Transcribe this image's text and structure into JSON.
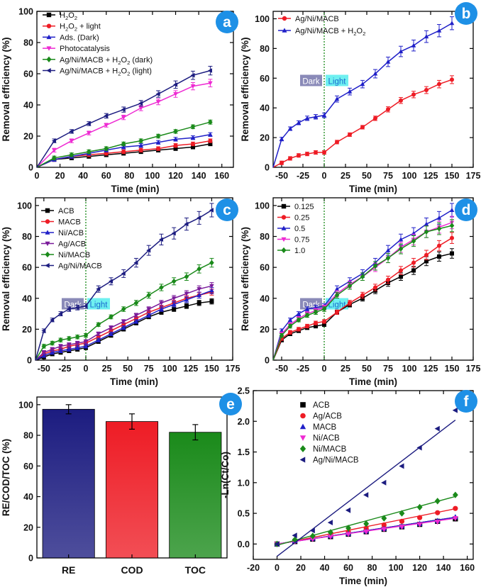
{
  "chart_data": [
    {
      "panel": "a",
      "type": "line",
      "xlabel": "Time (min)",
      "ylabel": "Removal efficiency (%)",
      "xlim": [
        0,
        170
      ],
      "ylim": [
        0,
        100
      ],
      "xticks": [
        0,
        20,
        40,
        60,
        80,
        100,
        120,
        140,
        160
      ],
      "yticks": [
        0,
        20,
        40,
        60,
        80,
        100
      ],
      "x": [
        0,
        15,
        30,
        45,
        60,
        75,
        90,
        105,
        120,
        135,
        150
      ],
      "series": [
        {
          "name": "H2O2",
          "color": "#000000",
          "marker": "square",
          "values": [
            0,
            5,
            6,
            7,
            8,
            9,
            10,
            11,
            12,
            13,
            15
          ]
        },
        {
          "name": "H2O2 + light",
          "color": "#ee1c25",
          "marker": "circle",
          "values": [
            0,
            5,
            7,
            8,
            9,
            10,
            11,
            12,
            14,
            15,
            17
          ]
        },
        {
          "name": "Ads. (Dark)",
          "color": "#2020c8",
          "marker": "triangle",
          "values": [
            0,
            5,
            7,
            9,
            11,
            13,
            14,
            16,
            18,
            19,
            21
          ]
        },
        {
          "name": "Photocatalysis",
          "color": "#ee2ad2",
          "marker": "triangle-down",
          "values": [
            0,
            11,
            17,
            22,
            27,
            32,
            38,
            42,
            47,
            52,
            54
          ]
        },
        {
          "name": "Ag/Ni/MACB + H2O2 (dark)",
          "color": "#1a8a1a",
          "marker": "diamond",
          "values": [
            0,
            6,
            8,
            10,
            12,
            15,
            17,
            20,
            23,
            26,
            29
          ]
        },
        {
          "name": "Ag/Ni/MACB + H2O2 (light)",
          "color": "#1c1c80",
          "marker": "triangle-left",
          "values": [
            0,
            17,
            23,
            28,
            33,
            37,
            41,
            47,
            53,
            59,
            62
          ]
        }
      ],
      "legend": [
        {
          "pre": "H",
          "sub1": "2",
          "mid": "O",
          "sub2": "2",
          "post": ""
        },
        {
          "pre": "H",
          "sub1": "2",
          "mid": "O",
          "sub2": "2",
          "post": " + light"
        },
        {
          "pre": "Ads. (Dark)",
          "sub1": "",
          "mid": "",
          "sub2": "",
          "post": ""
        },
        {
          "pre": "Photocatalysis",
          "sub1": "",
          "mid": "",
          "sub2": "",
          "post": ""
        },
        {
          "pre": "Ag/Ni/MACB + H",
          "sub1": "2",
          "mid": "O",
          "sub2": "2",
          "post": " (dark)"
        },
        {
          "pre": "Ag/Ni/MACB + H",
          "sub1": "2",
          "mid": "O",
          "sub2": "2",
          "post": " (light)"
        }
      ]
    },
    {
      "panel": "b",
      "type": "line",
      "xlabel": "Time (min)",
      "ylabel": "Removal efficiency (%)",
      "xlim": [
        -60,
        175
      ],
      "ylim": [
        0,
        105
      ],
      "xticks": [
        -50,
        -25,
        0,
        25,
        50,
        75,
        100,
        125,
        150,
        175
      ],
      "yticks": [
        0,
        20,
        40,
        60,
        80,
        100
      ],
      "x": [
        -60,
        -50,
        -40,
        -30,
        -20,
        -10,
        0,
        15,
        30,
        45,
        60,
        75,
        90,
        105,
        120,
        135,
        150
      ],
      "dark_label": "Dark",
      "light_label": "Light",
      "series": [
        {
          "name": "Ag/Ni/MACB",
          "color": "#ee1c25",
          "marker": "circle",
          "values": [
            0,
            3,
            6,
            8,
            9,
            10,
            10,
            17,
            22,
            27,
            33,
            39,
            45,
            49,
            52,
            56,
            59
          ]
        },
        {
          "name": "Ag/Ni/MACB + H2O2",
          "color": "#2020c8",
          "marker": "triangle",
          "values": [
            0,
            19,
            26,
            30,
            33,
            34,
            35,
            46,
            51,
            56,
            63,
            71,
            78,
            82,
            88,
            92,
            97
          ]
        }
      ],
      "legend": [
        {
          "pre": "Ag/Ni/MACB",
          "sub1": "",
          "mid": "",
          "sub2": "",
          "post": ""
        },
        {
          "pre": "Ag/Ni/MACB + H",
          "sub1": "2",
          "mid": "O",
          "sub2": "2",
          "post": ""
        }
      ]
    },
    {
      "panel": "c",
      "type": "line",
      "xlabel": "Time (min)",
      "ylabel": "Removal efficiency (%)",
      "xlim": [
        -60,
        175
      ],
      "ylim": [
        0,
        105
      ],
      "xticks": [
        -50,
        -25,
        0,
        25,
        50,
        75,
        100,
        125,
        150,
        175
      ],
      "yticks": [
        0,
        20,
        40,
        60,
        80,
        100
      ],
      "x": [
        -60,
        -50,
        -40,
        -30,
        -20,
        -10,
        0,
        15,
        30,
        45,
        60,
        75,
        90,
        105,
        120,
        135,
        150
      ],
      "dark_label": "Dark",
      "light_label": "Light",
      "series": [
        {
          "name": "ACB",
          "color": "#000000",
          "marker": "square",
          "values": [
            0,
            2,
            4,
            5,
            6,
            7,
            8,
            12,
            16,
            20,
            24,
            28,
            31,
            33,
            35,
            37,
            38
          ]
        },
        {
          "name": "MACB",
          "color": "#ee1c25",
          "marker": "circle",
          "values": [
            0,
            4,
            6,
            7,
            9,
            10,
            11,
            15,
            19,
            23,
            27,
            31,
            34,
            37,
            40,
            42,
            44
          ]
        },
        {
          "name": "Ni/ACB",
          "color": "#2020c8",
          "marker": "triangle",
          "values": [
            0,
            3,
            5,
            6,
            7,
            8,
            9,
            13,
            17,
            21,
            25,
            29,
            33,
            36,
            39,
            42,
            45
          ]
        },
        {
          "name": "Ag/ACB",
          "color": "#7a1a9a",
          "marker": "triangle-down",
          "values": [
            0,
            5,
            7,
            9,
            10,
            11,
            12,
            17,
            21,
            25,
            29,
            33,
            37,
            40,
            43,
            46,
            48
          ]
        },
        {
          "name": "Ni/MACB",
          "color": "#1a8a1a",
          "marker": "diamond",
          "values": [
            0,
            9,
            11,
            13,
            14,
            15,
            16,
            23,
            28,
            33,
            37,
            42,
            47,
            51,
            54,
            59,
            63
          ]
        },
        {
          "name": "Ag/Ni/MACB",
          "color": "#1c1c80",
          "marker": "triangle-left",
          "values": [
            0,
            19,
            26,
            30,
            33,
            34,
            35,
            46,
            51,
            56,
            63,
            71,
            78,
            82,
            88,
            92,
            97
          ]
        }
      ],
      "legend": [
        {
          "pre": "ACB",
          "sub1": "",
          "mid": "",
          "sub2": "",
          "post": ""
        },
        {
          "pre": "MACB",
          "sub1": "",
          "mid": "",
          "sub2": "",
          "post": ""
        },
        {
          "pre": "Ni/ACB",
          "sub1": "",
          "mid": "",
          "sub2": "",
          "post": ""
        },
        {
          "pre": "Ag/ACB",
          "sub1": "",
          "mid": "",
          "sub2": "",
          "post": ""
        },
        {
          "pre": "Ni/MACB",
          "sub1": "",
          "mid": "",
          "sub2": "",
          "post": ""
        },
        {
          "pre": "Ag/Ni/MACB",
          "sub1": "",
          "mid": "",
          "sub2": "",
          "post": ""
        }
      ]
    },
    {
      "panel": "d",
      "type": "line",
      "xlabel": "Time (min)",
      "ylabel": "Removal efficiency (%)",
      "xlim": [
        -60,
        175
      ],
      "ylim": [
        0,
        105
      ],
      "xticks": [
        -50,
        -25,
        0,
        25,
        50,
        75,
        100,
        125,
        150,
        175
      ],
      "yticks": [
        0,
        20,
        40,
        60,
        80,
        100
      ],
      "x": [
        -60,
        -50,
        -40,
        -30,
        -20,
        -10,
        0,
        15,
        30,
        45,
        60,
        75,
        90,
        105,
        120,
        135,
        150
      ],
      "dark_label": "Dark",
      "light_label": "Light",
      "series": [
        {
          "name": "0.125",
          "color": "#000000",
          "marker": "square",
          "values": [
            0,
            13,
            17,
            19,
            21,
            22,
            23,
            31,
            36,
            40,
            45,
            50,
            54,
            58,
            64,
            67,
            69
          ]
        },
        {
          "name": "0.25",
          "color": "#ee1c25",
          "marker": "circle",
          "values": [
            0,
            14,
            18,
            20,
            22,
            24,
            25,
            31,
            37,
            42,
            47,
            52,
            58,
            63,
            68,
            74,
            79
          ]
        },
        {
          "name": "0.5",
          "color": "#2020c8",
          "marker": "triangle",
          "values": [
            0,
            19,
            26,
            30,
            33,
            34,
            35,
            46,
            51,
            56,
            63,
            71,
            78,
            82,
            88,
            92,
            97
          ]
        },
        {
          "name": "0.75",
          "color": "#ee2ad2",
          "marker": "triangle-down",
          "values": [
            0,
            17,
            23,
            27,
            30,
            32,
            34,
            43,
            49,
            54,
            60,
            66,
            73,
            78,
            83,
            86,
            89
          ]
        },
        {
          "name": "1.0",
          "color": "#1a8a1a",
          "marker": "diamond",
          "values": [
            0,
            16,
            22,
            26,
            29,
            31,
            33,
            42,
            48,
            54,
            61,
            66,
            72,
            77,
            83,
            85,
            87
          ]
        }
      ],
      "legend": [
        {
          "pre": "0.125",
          "sub1": "",
          "mid": "",
          "sub2": "",
          "post": ""
        },
        {
          "pre": "0.25",
          "sub1": "",
          "mid": "",
          "sub2": "",
          "post": ""
        },
        {
          "pre": "0.5",
          "sub1": "",
          "mid": "",
          "sub2": "",
          "post": ""
        },
        {
          "pre": "0.75",
          "sub1": "",
          "mid": "",
          "sub2": "",
          "post": ""
        },
        {
          "pre": "1.0",
          "sub1": "",
          "mid": "",
          "sub2": "",
          "post": ""
        }
      ]
    },
    {
      "panel": "e",
      "type": "bar",
      "ylabel": "RE/COD/TOC (%)",
      "ylim": [
        0,
        105
      ],
      "yticks": [
        0,
        20,
        40,
        60,
        80,
        100
      ],
      "categories": [
        "RE",
        "COD",
        "TOC"
      ],
      "values": [
        97,
        89,
        82
      ],
      "errors": [
        3,
        5,
        5
      ],
      "colors": [
        "#1c1c80",
        "#ee1c25",
        "#1a8a1a"
      ]
    },
    {
      "panel": "f",
      "type": "scatter",
      "xlabel": "Time (min)",
      "ylabel": "-Ln(Ct/Co)",
      "xlim": [
        -20,
        165
      ],
      "ylim": [
        -0.25,
        2.5
      ],
      "xticks": [
        -20,
        0,
        20,
        40,
        60,
        80,
        100,
        120,
        140,
        160
      ],
      "yticks": [
        0.0,
        0.5,
        1.0,
        1.5,
        2.0,
        2.5
      ],
      "x": [
        0,
        15,
        30,
        45,
        60,
        75,
        90,
        105,
        120,
        135,
        150
      ],
      "series": [
        {
          "name": "ACB",
          "color": "#000000",
          "marker": "square",
          "slope": 0.0029,
          "intercept": 0.0,
          "values": [
            0,
            0.04,
            0.08,
            0.12,
            0.16,
            0.2,
            0.24,
            0.28,
            0.32,
            0.37,
            0.41
          ]
        },
        {
          "name": "Ag/ACB",
          "color": "#ee1c25",
          "marker": "circle",
          "slope": 0.0039,
          "intercept": -0.01,
          "values": [
            0,
            0.05,
            0.1,
            0.15,
            0.2,
            0.26,
            0.31,
            0.37,
            0.43,
            0.51,
            0.58
          ]
        },
        {
          "name": "MACB",
          "color": "#2020c8",
          "marker": "triangle",
          "slope": 0.0029,
          "intercept": 0.0,
          "values": [
            0,
            0.05,
            0.09,
            0.13,
            0.17,
            0.21,
            0.25,
            0.29,
            0.33,
            0.38,
            0.44
          ]
        },
        {
          "name": "Ni/ACB",
          "color": "#ee2ad2",
          "marker": "triangle-down",
          "slope": 0.0028,
          "intercept": 0.0,
          "values": [
            0,
            0.04,
            0.08,
            0.12,
            0.16,
            0.2,
            0.24,
            0.28,
            0.32,
            0.36,
            0.42
          ]
        },
        {
          "name": "Ni/MACB",
          "color": "#1a8a1a",
          "marker": "diamond",
          "slope": 0.0053,
          "intercept": -0.02,
          "values": [
            0,
            0.07,
            0.13,
            0.19,
            0.26,
            0.33,
            0.42,
            0.5,
            0.6,
            0.7,
            0.8
          ]
        },
        {
          "name": "Ag/Ni/MACB",
          "color": "#1c1c80",
          "marker": "triangle-left",
          "slope": 0.0148,
          "intercept": -0.2,
          "values": [
            0,
            0.14,
            0.22,
            0.35,
            0.55,
            0.8,
            1.0,
            1.27,
            1.57,
            1.88,
            2.18
          ]
        }
      ],
      "legend": [
        {
          "pre": "ACB",
          "sub1": "",
          "mid": "",
          "sub2": "",
          "post": ""
        },
        {
          "pre": "Ag/ACB",
          "sub1": "",
          "mid": "",
          "sub2": "",
          "post": ""
        },
        {
          "pre": "MACB",
          "sub1": "",
          "mid": "",
          "sub2": "",
          "post": ""
        },
        {
          "pre": "Ni/ACB",
          "sub1": "",
          "mid": "",
          "sub2": "",
          "post": ""
        },
        {
          "pre": "Ni/MACB",
          "sub1": "",
          "mid": "",
          "sub2": "",
          "post": ""
        },
        {
          "pre": "Ag/Ni/MACB",
          "sub1": "",
          "mid": "",
          "sub2": "",
          "post": ""
        }
      ]
    }
  ],
  "panel_badge_color": "#1e90e6"
}
